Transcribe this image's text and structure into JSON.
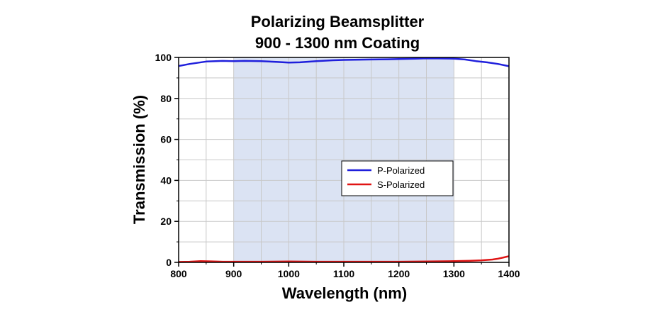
{
  "chart_data": {
    "type": "line",
    "title": [
      "Polarizing Beamsplitter",
      "900 - 1300 nm Coating"
    ],
    "xlabel": "Wavelength (nm)",
    "ylabel": "Transmission (%)",
    "xlim": [
      800,
      1400
    ],
    "ylim": [
      0,
      100
    ],
    "x_ticks": [
      800,
      900,
      1000,
      1100,
      1200,
      1300,
      1400
    ],
    "y_ticks": [
      0,
      20,
      40,
      60,
      80,
      100
    ],
    "grid": true,
    "legend_placement": "center-right",
    "highlight_region": {
      "x": [
        900,
        1300
      ],
      "color": "#dbe3f3"
    },
    "series": [
      {
        "name": "P-Polarized",
        "color": "#1f1fdc",
        "points": [
          [
            800,
            95.8
          ],
          [
            820,
            96.8
          ],
          [
            850,
            98.0
          ],
          [
            880,
            98.3
          ],
          [
            900,
            98.2
          ],
          [
            920,
            98.3
          ],
          [
            950,
            98.2
          ],
          [
            980,
            97.8
          ],
          [
            1000,
            97.5
          ],
          [
            1020,
            97.6
          ],
          [
            1050,
            98.2
          ],
          [
            1080,
            98.6
          ],
          [
            1100,
            98.8
          ],
          [
            1120,
            98.9
          ],
          [
            1150,
            99.0
          ],
          [
            1180,
            99.1
          ],
          [
            1200,
            99.2
          ],
          [
            1230,
            99.4
          ],
          [
            1250,
            99.6
          ],
          [
            1270,
            99.5
          ],
          [
            1300,
            99.4
          ],
          [
            1320,
            99.0
          ],
          [
            1340,
            98.2
          ],
          [
            1360,
            97.6
          ],
          [
            1380,
            96.8
          ],
          [
            1400,
            95.7
          ]
        ]
      },
      {
        "name": "S-Polarized",
        "color": "#e01414",
        "points": [
          [
            800,
            0.2
          ],
          [
            820,
            0.3
          ],
          [
            840,
            0.6
          ],
          [
            860,
            0.5
          ],
          [
            880,
            0.3
          ],
          [
            900,
            0.3
          ],
          [
            950,
            0.3
          ],
          [
            1000,
            0.4
          ],
          [
            1050,
            0.3
          ],
          [
            1100,
            0.3
          ],
          [
            1150,
            0.3
          ],
          [
            1200,
            0.3
          ],
          [
            1250,
            0.4
          ],
          [
            1300,
            0.6
          ],
          [
            1330,
            0.8
          ],
          [
            1350,
            1.0
          ],
          [
            1370,
            1.4
          ],
          [
            1380,
            1.8
          ],
          [
            1390,
            2.4
          ],
          [
            1400,
            3.0
          ]
        ]
      }
    ]
  }
}
